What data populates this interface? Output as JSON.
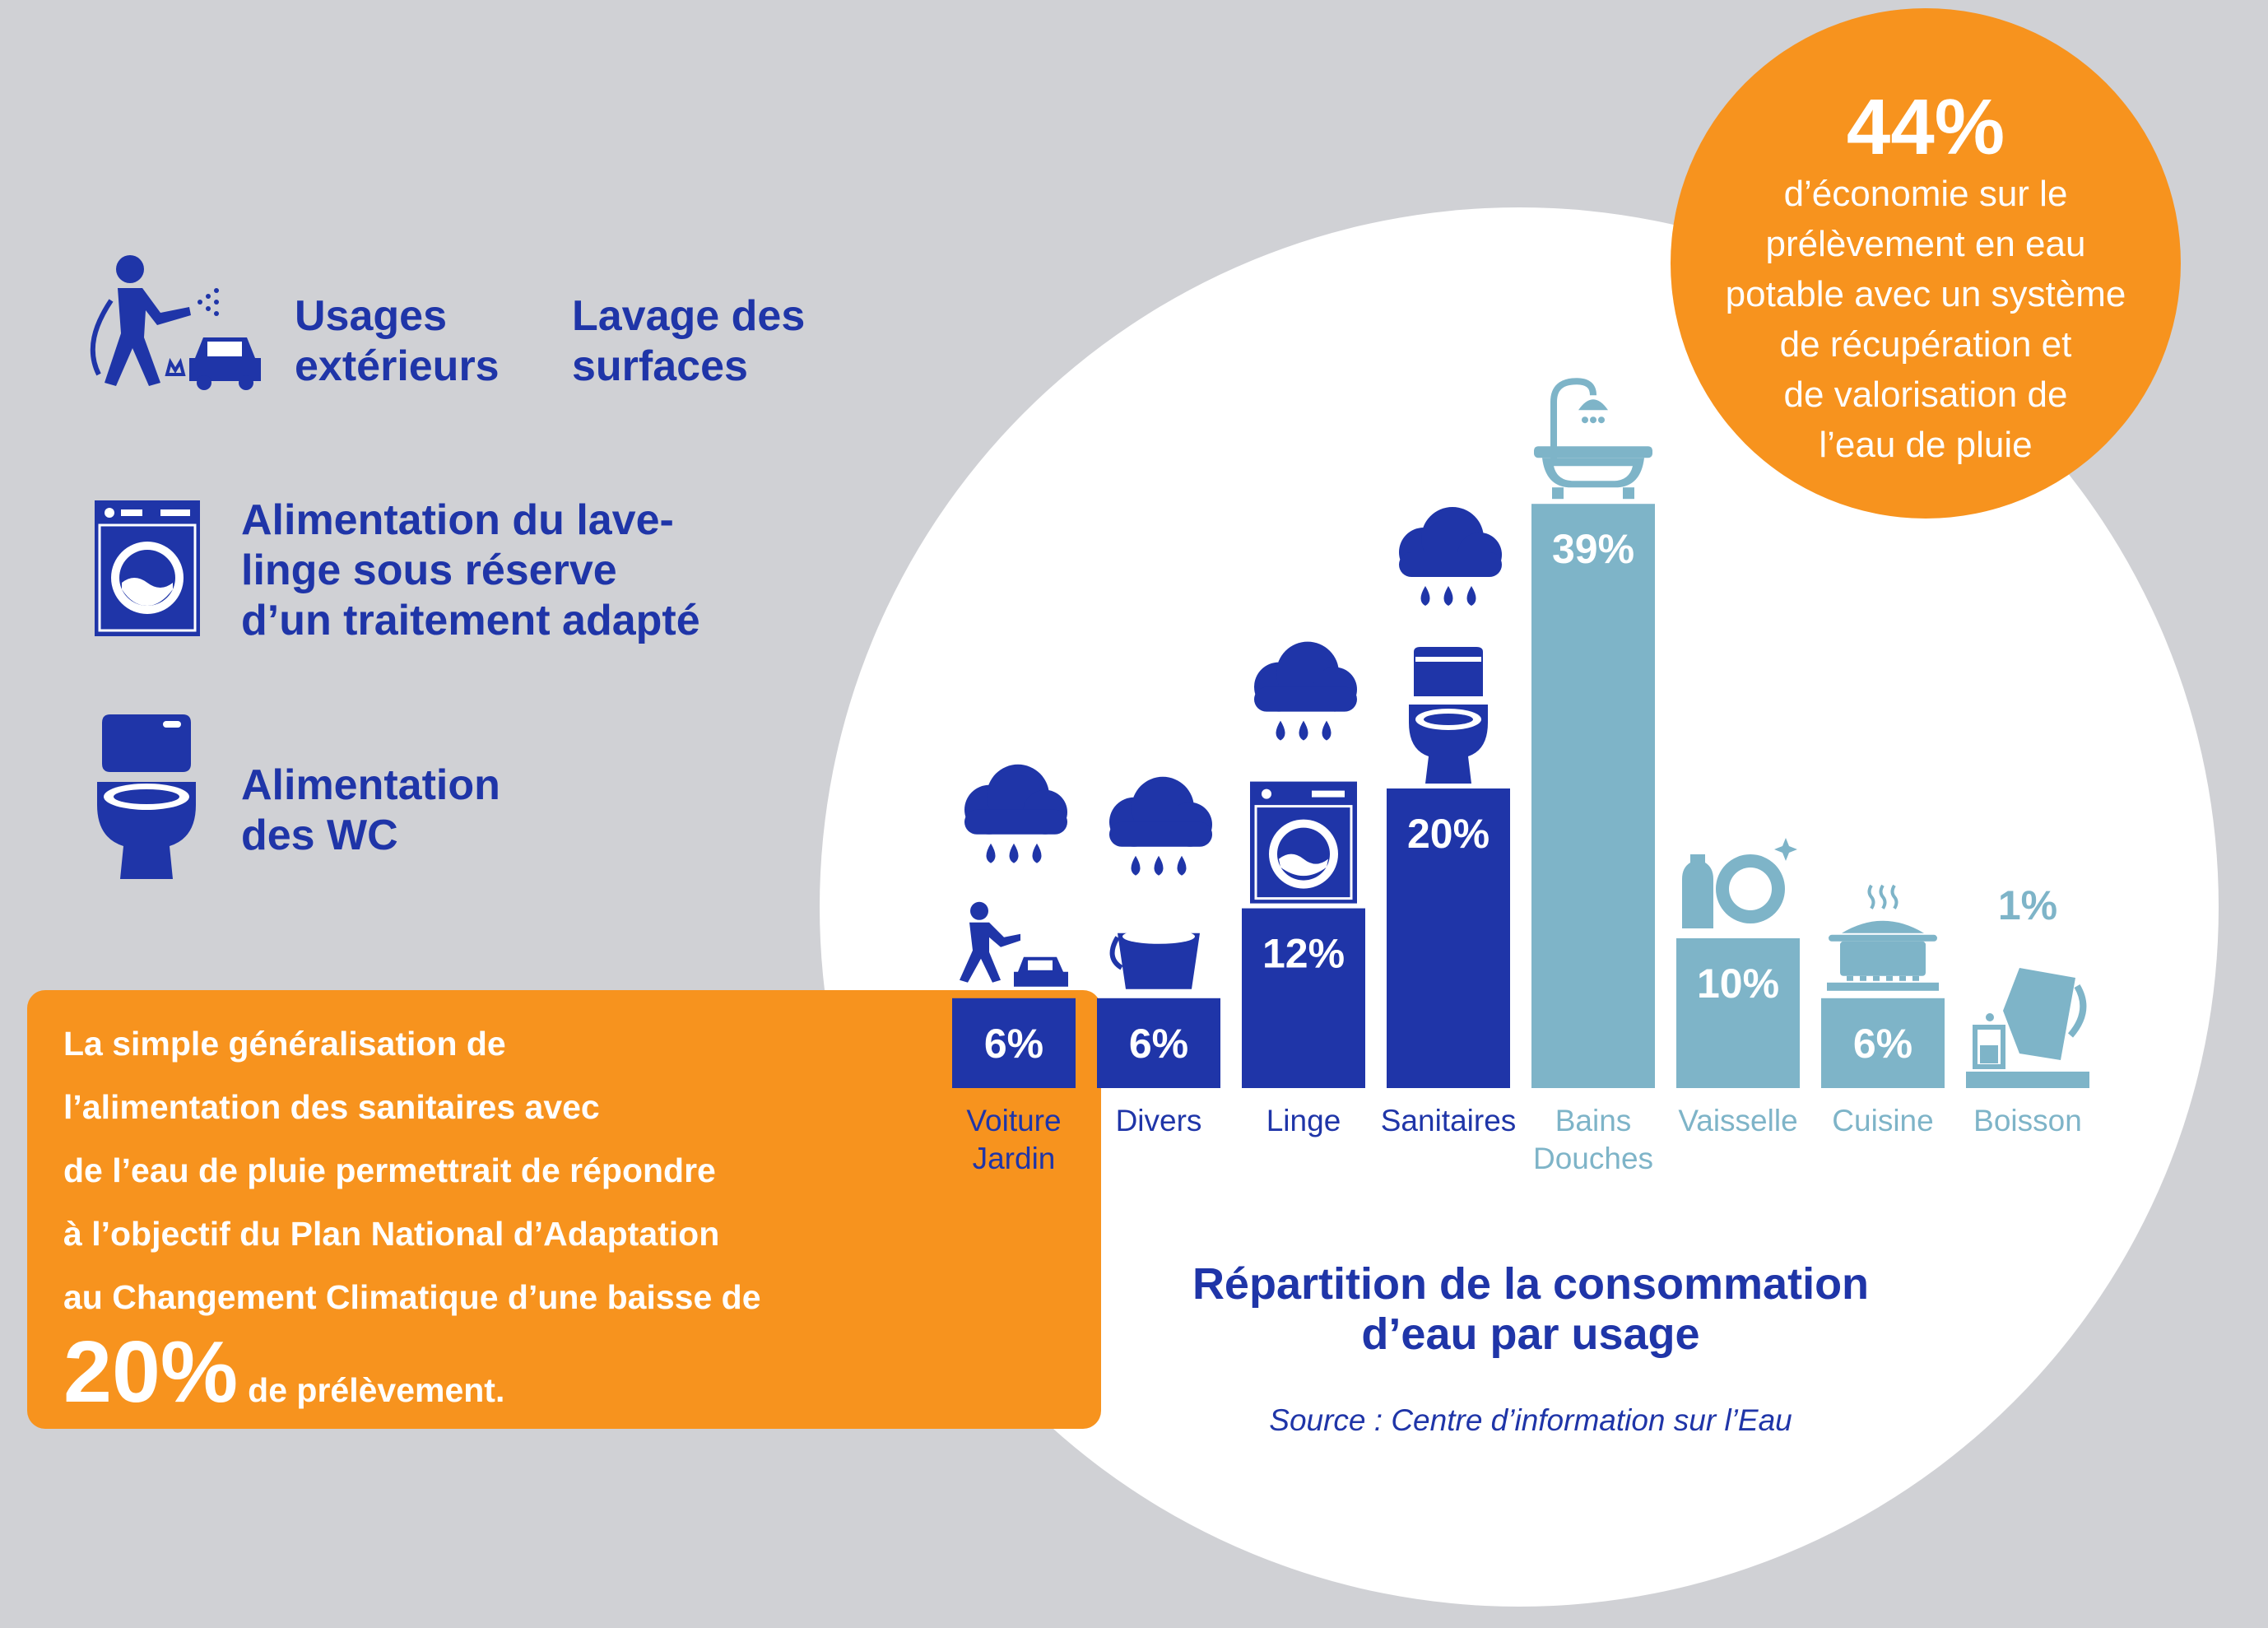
{
  "legend": {
    "outdoor": "Usages\nextérieurs",
    "surfaces": "Lavage des\nsurfaces",
    "washing_machine": "Alimentation du lave-\nlinge sous réserve\nd’un traitement adapté",
    "wc": "Alimentation\ndes WC"
  },
  "note": {
    "lines": [
      "La simple généralisation de",
      "l’alimentation des sanitaires avec",
      "de l’eau de pluie permettrait de répondre",
      "à l’objectif du Plan National d’Adaptation",
      "au Changement Climatique d’une baisse de"
    ],
    "big": "20%",
    "tail": "de prélèvement."
  },
  "badge": {
    "big": "44%",
    "text": "d’économie sur le\nprélèvement en eau\npotable avec un système\nde récupération et\nde valorisation de\nl’eau de pluie"
  },
  "colors": {
    "blue": "#1f35a8",
    "light_blue": "#7eb4c8",
    "orange": "#f7931e"
  },
  "chart_data": {
    "type": "bar",
    "title": "Répartition de la consommation\nd’eau par usage",
    "source": "Source : Centre d’information sur l’Eau",
    "categories": [
      "Voiture\nJardin",
      "Divers",
      "Linge",
      "Sanitaires",
      "Bains\nDouches",
      "Vaisselle",
      "Cuisine",
      "Boisson"
    ],
    "values": [
      6,
      6,
      12,
      20,
      39,
      10,
      6,
      1
    ],
    "value_labels": [
      "6%",
      "6%",
      "12%",
      "20%",
      "39%",
      "10%",
      "6%",
      "1%"
    ],
    "rainwater_usable": [
      true,
      true,
      true,
      true,
      false,
      false,
      false,
      false
    ],
    "icons": [
      "gardener-car-icon",
      "bucket-icon",
      "washing-machine-icon",
      "toilet-icon",
      "bathtub-shower-icon",
      "dish-soap-plate-icon",
      "cooking-pot-icon",
      "pitcher-glass-icon"
    ]
  }
}
